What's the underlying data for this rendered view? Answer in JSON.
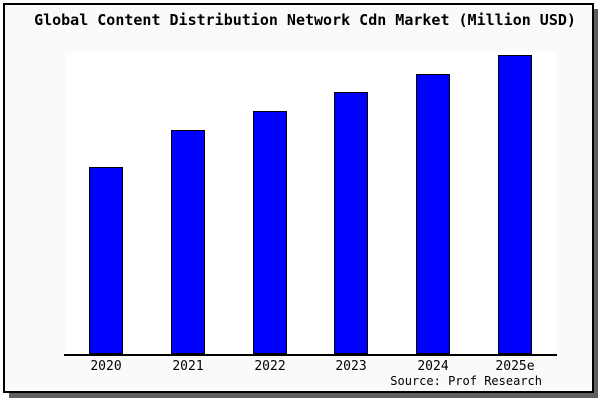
{
  "title": "Global Content Distribution Network Cdn Market (Million USD)",
  "source": "Source: Prof Research",
  "colors": {
    "bar_fill": "#0000ff",
    "bar_stroke": "#000000",
    "frame_background": "#fafafa",
    "plot_background": "#ffffff",
    "frame_border": "#000000",
    "frame_shadow": "#5f5f5f",
    "text": "#000000"
  },
  "chart_data": {
    "type": "bar",
    "title": "Global Content Distribution Network Cdn Market (Million USD)",
    "categories": [
      "2020",
      "2021",
      "2022",
      "2023",
      "2024",
      "2025e"
    ],
    "values": [
      62.5,
      75.0,
      81.3,
      87.6,
      93.7,
      100
    ],
    "value_axis": "unlabeled (relative units, 2025e bar = 100)",
    "ylim": [
      0,
      100
    ],
    "xlabel": "",
    "ylabel": "",
    "grid": false,
    "legend": false,
    "source": "Source: Prof Research"
  }
}
